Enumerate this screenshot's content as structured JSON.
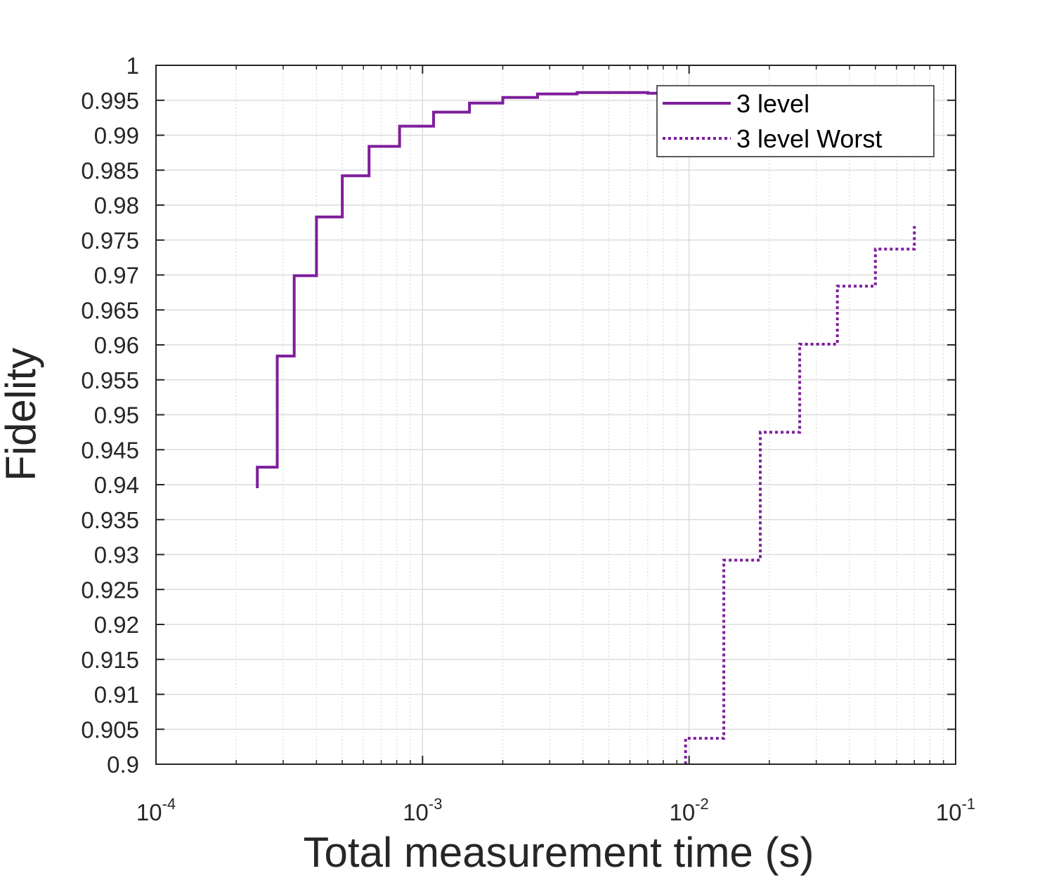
{
  "chart_data": {
    "type": "line",
    "xlabel": "Total measurement time (s)",
    "ylabel": "Fidelity",
    "xscale": "log",
    "xlim": [
      0.0001,
      0.1
    ],
    "ylim": [
      0.9,
      1.0
    ],
    "grid": "on",
    "legend_position": "top-right",
    "xticks": [
      {
        "base": "10",
        "exp": "-4",
        "value": 0.0001
      },
      {
        "base": "10",
        "exp": "-3",
        "value": 0.001
      },
      {
        "base": "10",
        "exp": "-2",
        "value": 0.01
      },
      {
        "base": "10",
        "exp": "-1",
        "value": 0.1
      }
    ],
    "yticks": [
      "0.9",
      "0.905",
      "0.91",
      "0.915",
      "0.92",
      "0.925",
      "0.93",
      "0.935",
      "0.94",
      "0.945",
      "0.95",
      "0.955",
      "0.96",
      "0.965",
      "0.97",
      "0.975",
      "0.98",
      "0.985",
      "0.99",
      "0.995",
      "1"
    ],
    "series": [
      {
        "name": "3 level",
        "style": "solid",
        "color": "#7e1e9c",
        "step": true,
        "x": [
          0.00024,
          0.00024,
          0.000285,
          0.00033,
          0.0004,
          0.0005,
          0.00063,
          0.00082,
          0.0011,
          0.0015,
          0.002,
          0.0027,
          0.0038,
          0.005,
          0.007,
          0.008
        ],
        "y": [
          0.9395,
          0.9425,
          0.9584,
          0.9699,
          0.9783,
          0.9842,
          0.9884,
          0.9913,
          0.9933,
          0.9946,
          0.9954,
          0.9959,
          0.9961,
          0.9961,
          0.996,
          0.9958
        ]
      },
      {
        "name": "3 level Worst",
        "style": "dotted",
        "color": "#7e1e9c",
        "step": true,
        "x": [
          0.0097,
          0.0097,
          0.0135,
          0.0185,
          0.026,
          0.036,
          0.05,
          0.07,
          0.07
        ],
        "y": [
          0.9,
          0.9037,
          0.9292,
          0.9475,
          0.9601,
          0.9684,
          0.9737,
          0.974,
          0.977
        ]
      }
    ]
  }
}
